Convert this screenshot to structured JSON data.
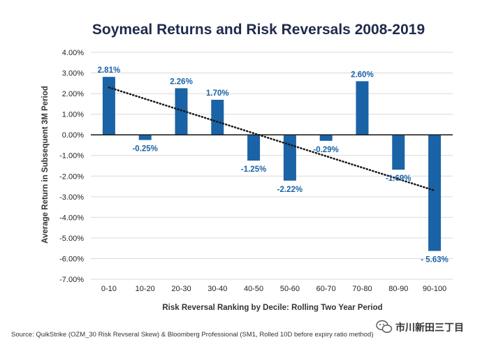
{
  "chart_data": {
    "type": "bar",
    "title": "Soymeal Returns and Risk Reversals 2008-2019",
    "xlabel": "Risk Reversal Ranking by Decile: Rolling Two Year Period",
    "ylabel": "Average Return in Subsequent 3M Period",
    "categories": [
      "0-10",
      "10-20",
      "20-30",
      "30-40",
      "40-50",
      "50-60",
      "60-70",
      "70-80",
      "80-90",
      "90-100"
    ],
    "values": [
      2.81,
      -0.25,
      2.26,
      1.7,
      -1.25,
      -2.22,
      -0.29,
      2.6,
      -1.69,
      -5.63
    ],
    "data_labels": [
      "2.81%",
      "-0.25%",
      "2.26%",
      "1.70%",
      "-1.25%",
      "-2.22%",
      "-0.29%",
      "2.60%",
      "-1.69%",
      "- 5.63%"
    ],
    "yticks": [
      4,
      3,
      2,
      1,
      0,
      -1,
      -2,
      -3,
      -4,
      -5,
      -6,
      -7
    ],
    "ytick_labels": [
      "4.00%",
      "3.00%",
      "2.00%",
      "1.00%",
      "0.00%",
      "-1.00%",
      "-2.00%",
      "-3.00%",
      "-4.00%",
      "-5.00%",
      "-6.00%",
      "-7.00%"
    ],
    "ylim": [
      -7,
      4
    ],
    "grid": true,
    "trendline": {
      "style": "dotted",
      "start": 2.3,
      "end": -2.7
    },
    "colors": {
      "bar": "#1a63a6",
      "label": "#1a63a6",
      "grid": "#d9d9d9",
      "trend": "#1a1a1a"
    }
  },
  "footer": {
    "source": "Source: QuikStrike (OZM_30 Risk Revseral Skew) & Bloomberg Professional (SM1, Rolled 10D before expiry ratio method)"
  },
  "watermark": {
    "icon": "wechat-icon",
    "text": "市川新田三丁目"
  }
}
